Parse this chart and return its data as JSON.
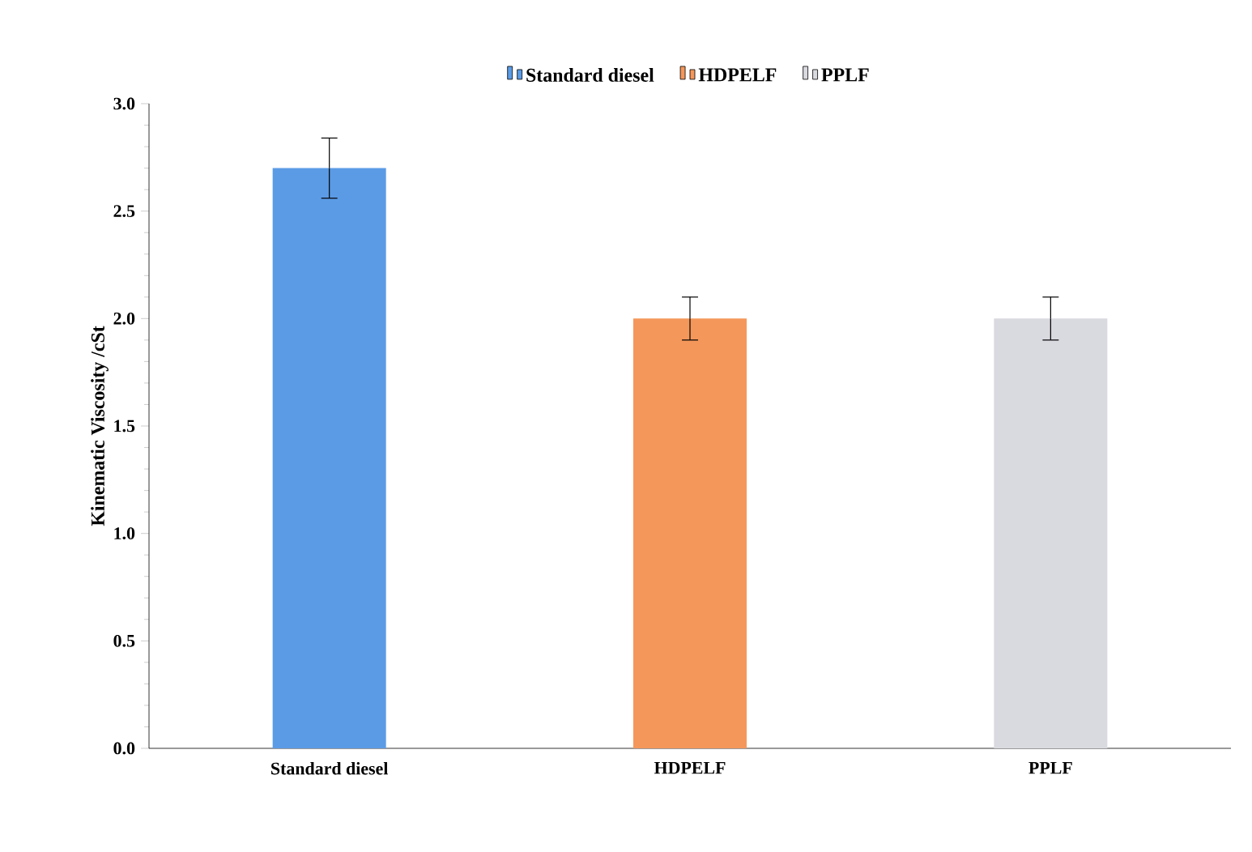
{
  "chart_data": {
    "type": "bar",
    "ylabel": "Kinematic  Viscosity /cSt",
    "categories": [
      "Standard diesel",
      "HDPELF",
      "PPLF"
    ],
    "series": [
      {
        "name": "Standard diesel",
        "color": "#5b9be6",
        "values": [
          2.7,
          null,
          null
        ],
        "errors": [
          0.14,
          null,
          null
        ]
      },
      {
        "name": "HDPELF",
        "color": "#f4975a",
        "values": [
          null,
          2.0,
          null
        ],
        "errors": [
          null,
          0.1,
          null
        ]
      },
      {
        "name": "PPLF",
        "color": "#d9d9e0",
        "values": [
          null,
          null,
          2.0
        ],
        "errors": [
          null,
          null,
          0.1
        ]
      }
    ],
    "ylim": [
      0,
      3.0
    ],
    "yticks": [
      {
        "value": 0,
        "label": "0.0"
      },
      {
        "value": 0.5,
        "label": "0.5"
      },
      {
        "value": 1,
        "label": "1.0"
      },
      {
        "value": 1.5,
        "label": "1.5"
      },
      {
        "value": 2,
        "label": "2.0"
      },
      {
        "value": 2.5,
        "label": "2.5"
      },
      {
        "value": 3,
        "label": "3.0"
      }
    ],
    "legend": "top",
    "grid": false
  }
}
